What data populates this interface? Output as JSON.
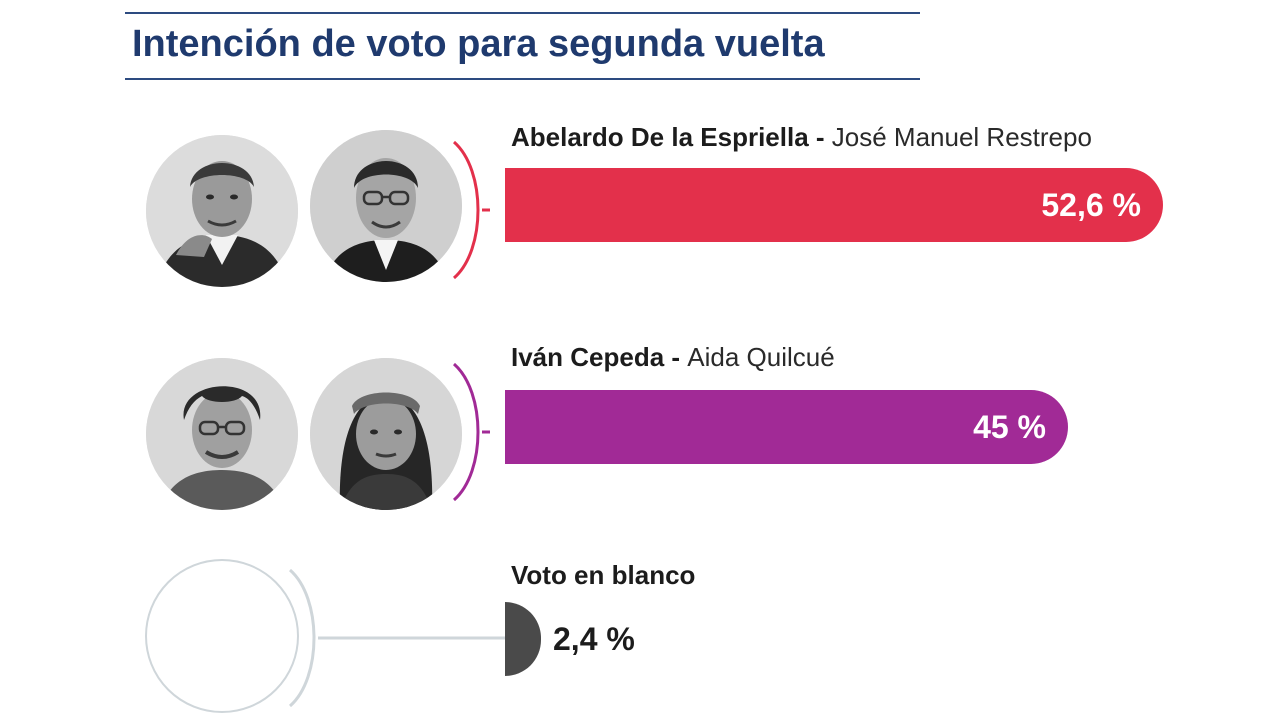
{
  "header": {
    "title": "Intención de voto para segunda vuelta",
    "title_color": "#1f3a6e",
    "rule_color": "#2d4b80"
  },
  "rows": [
    {
      "president": "Abelardo De la Espriella",
      "separator": " - ",
      "vice": "José Manuel Restrepo",
      "value_label": "52,6 %",
      "color": "#e3304b",
      "avatars": [
        "man-photo-icon",
        "man-glasses-photo-icon"
      ]
    },
    {
      "president": "Iván Cepeda",
      "separator": " - ",
      "vice": "Aida Quilcué",
      "value_label": "45 %",
      "color": "#a12a96",
      "avatars": [
        "man-curly-glasses-photo-icon",
        "woman-headband-photo-icon"
      ]
    },
    {
      "president": "Voto en blanco",
      "value_label": "2,4 %",
      "color": "#4a4a4a",
      "accent_color": "#cfd6da"
    }
  ],
  "chart_data": {
    "type": "bar",
    "orientation": "horizontal",
    "title": "Intención de voto para segunda vuelta",
    "categories": [
      "Abelardo De la Espriella - José Manuel Restrepo",
      "Iván Cepeda - Aida Quilcué",
      "Voto en blanco"
    ],
    "values": [
      52.6,
      45,
      2.4
    ],
    "value_labels": [
      "52,6 %",
      "45 %",
      "2,4 %"
    ],
    "unit": "%",
    "xlim": [
      0,
      52.6
    ],
    "colors": [
      "#e3304b",
      "#a12a96",
      "#4a4a4a"
    ],
    "grid": false,
    "legend": "none"
  }
}
